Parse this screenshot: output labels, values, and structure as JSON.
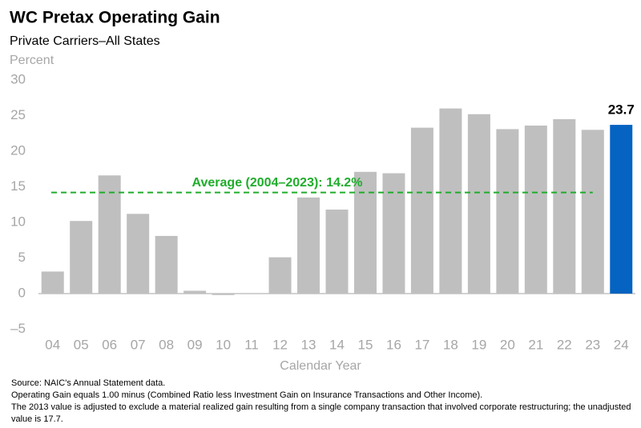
{
  "chart_data": {
    "type": "bar",
    "title": "WC Pretax Operating Gain",
    "subtitle": "Private Carriers–All States",
    "y_axis_label": "Percent",
    "x_axis_label": "Calendar Year",
    "categories": [
      "04",
      "05",
      "06",
      "07",
      "08",
      "09",
      "10",
      "11",
      "12",
      "13",
      "14",
      "15",
      "16",
      "17",
      "18",
      "19",
      "20",
      "21",
      "22",
      "23",
      "24"
    ],
    "values": [
      3.1,
      10.2,
      16.6,
      11.2,
      8.1,
      0.4,
      -0.2,
      0.0,
      5.1,
      13.5,
      11.8,
      17.1,
      16.9,
      23.3,
      26.0,
      25.2,
      23.1,
      23.6,
      24.5,
      23.0,
      23.7
    ],
    "colors": [
      "#bfbfbf",
      "#bfbfbf",
      "#bfbfbf",
      "#bfbfbf",
      "#bfbfbf",
      "#bfbfbf",
      "#bfbfbf",
      "#bfbfbf",
      "#bfbfbf",
      "#bfbfbf",
      "#bfbfbf",
      "#bfbfbf",
      "#bfbfbf",
      "#bfbfbf",
      "#bfbfbf",
      "#bfbfbf",
      "#bfbfbf",
      "#bfbfbf",
      "#bfbfbf",
      "#bfbfbf",
      "#0563c1"
    ],
    "labeled_index": 20,
    "average": 14.2,
    "average_label": "Average (2004–2023): 14.2%",
    "average_color": "#1fad2b",
    "ylim": [
      -5,
      30
    ],
    "yticks": [
      {
        "value": -5,
        "label": "–5"
      },
      0,
      5,
      10,
      15,
      20,
      25,
      30
    ],
    "grid": false,
    "notes": [
      "Source: NAIC's Annual Statement data.",
      "Operating Gain equals 1.00 minus (Combined Ratio less Investment Gain on Insurance Transactions and Other Income).",
      "The 2013 value is adjusted to exclude a material realized gain resulting from a single company transaction that involved corporate restructuring; the unadjusted value is 17.7."
    ]
  }
}
